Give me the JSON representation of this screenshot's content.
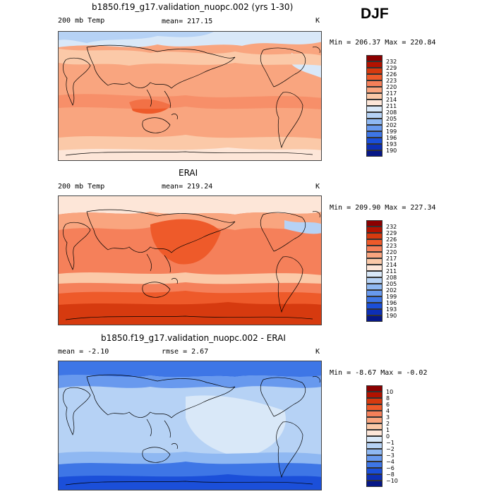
{
  "season": "DJF",
  "panels": [
    {
      "title": "b1850.f19_g17.validation_nuopc.002 (yrs 1-30)",
      "variable": "200 mb Temp",
      "stat": "mean= 217.15",
      "unit": "K",
      "range": "Min = 206.37 Max = 220.84",
      "palette": "abs"
    },
    {
      "title": "ERAI",
      "variable": "200 mb Temp",
      "stat": "mean= 219.24",
      "unit": "K",
      "range": "Min = 209.90 Max = 227.34",
      "palette": "abs"
    },
    {
      "title": "b1850.f19_g17.validation_nuopc.002 - ERAI",
      "variable": "mean =  -2.10",
      "stat": "rmse =   2.67",
      "unit": "K",
      "range": "Min =  -8.67 Max =  -0.02",
      "palette": "diff"
    }
  ],
  "colorbars": {
    "abs": {
      "labels": [
        "232",
        "229",
        "226",
        "223",
        "220",
        "217",
        "214",
        "211",
        "208",
        "205",
        "202",
        "199",
        "196",
        "193",
        "190"
      ],
      "colors": [
        "#8b0000",
        "#b31200",
        "#d63a0f",
        "#ee5a2a",
        "#f5805a",
        "#f9a57f",
        "#fbc9a8",
        "#fde6d8",
        "#d9e8f8",
        "#b6d2f5",
        "#8fb8f2",
        "#6899ee",
        "#3e76e6",
        "#1b4fd9",
        "#0d2fb6",
        "#061787"
      ]
    },
    "diff": {
      "labels": [
        "10",
        "8",
        "6",
        "4",
        "3",
        "2",
        "1",
        "0",
        "−1",
        "−2",
        "−3",
        "−4",
        "−6",
        "−8",
        "−10"
      ],
      "colors": [
        "#8b0000",
        "#b31200",
        "#d63a0f",
        "#ee5a2a",
        "#f5805a",
        "#f9a57f",
        "#fbc9a8",
        "#fde6d8",
        "#d9e8f8",
        "#b6d2f5",
        "#8fb8f2",
        "#6899ee",
        "#3e76e6",
        "#1b4fd9",
        "#0d2fb6",
        "#061787"
      ]
    }
  }
}
